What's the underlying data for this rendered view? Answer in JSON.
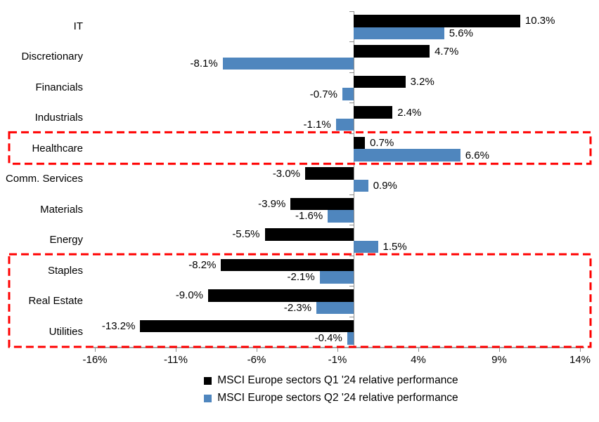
{
  "chart_data": {
    "type": "bar",
    "orientation": "horizontal",
    "title": "",
    "categories": [
      "IT",
      "Discretionary",
      "Financials",
      "Industrials",
      "Healthcare",
      "Comm. Services",
      "Materials",
      "Energy",
      "Staples",
      "Real Estate",
      "Utilities"
    ],
    "series": [
      {
        "key": "q1",
        "name": "MSCI Europe sectors Q1 '24 relative performance",
        "color": "#000000",
        "values": [
          10.3,
          4.7,
          3.2,
          2.4,
          0.7,
          -3.0,
          -3.9,
          -5.5,
          -8.2,
          -9.0,
          -13.2
        ],
        "labels": [
          "10.3%",
          "4.7%",
          "3.2%",
          "2.4%",
          "0.7%",
          "-3.0%",
          "-3.9%",
          "-5.5%",
          "-8.2%",
          "-9.0%",
          "-13.2%"
        ]
      },
      {
        "key": "q2",
        "name": "MSCI Europe sectors Q2 '24 relative performance",
        "color": "#4F86BE",
        "values": [
          5.6,
          -8.1,
          -0.7,
          -1.1,
          6.6,
          0.9,
          -1.6,
          1.5,
          -2.1,
          -2.3,
          -0.4
        ],
        "labels": [
          "5.6%",
          "-8.1%",
          "-0.7%",
          "-1.1%",
          "6.6%",
          "0.9%",
          "-1.6%",
          "1.5%",
          "-2.1%",
          "-2.3%",
          "-0.4%"
        ]
      }
    ],
    "xlim": [
      -16,
      14
    ],
    "x_tick_values": [
      -16,
      -11,
      -6,
      -1,
      4,
      9,
      14
    ],
    "x_ticks": [
      "-16%",
      "-11%",
      "-6%",
      "-1%",
      "4%",
      "9%",
      "14%"
    ],
    "grid": false,
    "legend_position": "bottom",
    "annotations": [
      {
        "id": "healthcare",
        "from": 4,
        "to": 4
      },
      {
        "id": "staples-realestate-utilities",
        "from": 8,
        "to": 10
      }
    ],
    "colors": {
      "axis": "#8C8C8C",
      "highlight": "#FF0000",
      "text": "#000000",
      "background": "#FFFFFF"
    }
  }
}
